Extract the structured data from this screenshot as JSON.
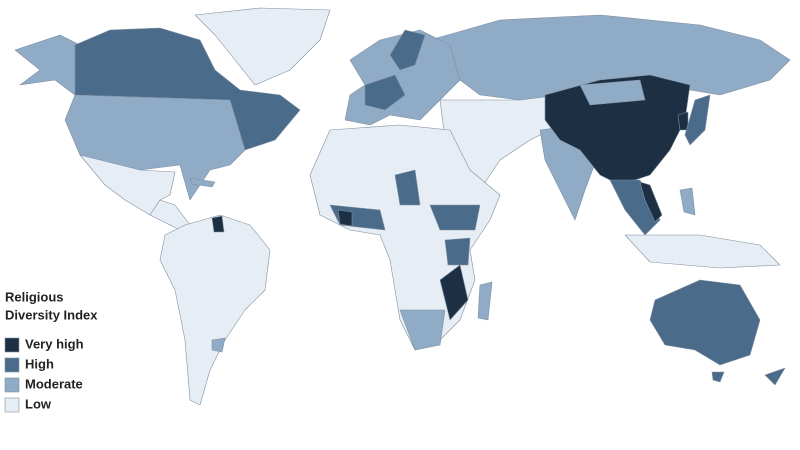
{
  "legend": {
    "title_lines": [
      "Religious",
      "Diversity Index"
    ],
    "items": [
      {
        "label": "Very high",
        "color": "#1d2f42"
      },
      {
        "label": "High",
        "color": "#4b6b8b"
      },
      {
        "label": "Moderate",
        "color": "#8fabc6"
      },
      {
        "label": "Low",
        "color": "#e6edf5"
      }
    ]
  }
}
